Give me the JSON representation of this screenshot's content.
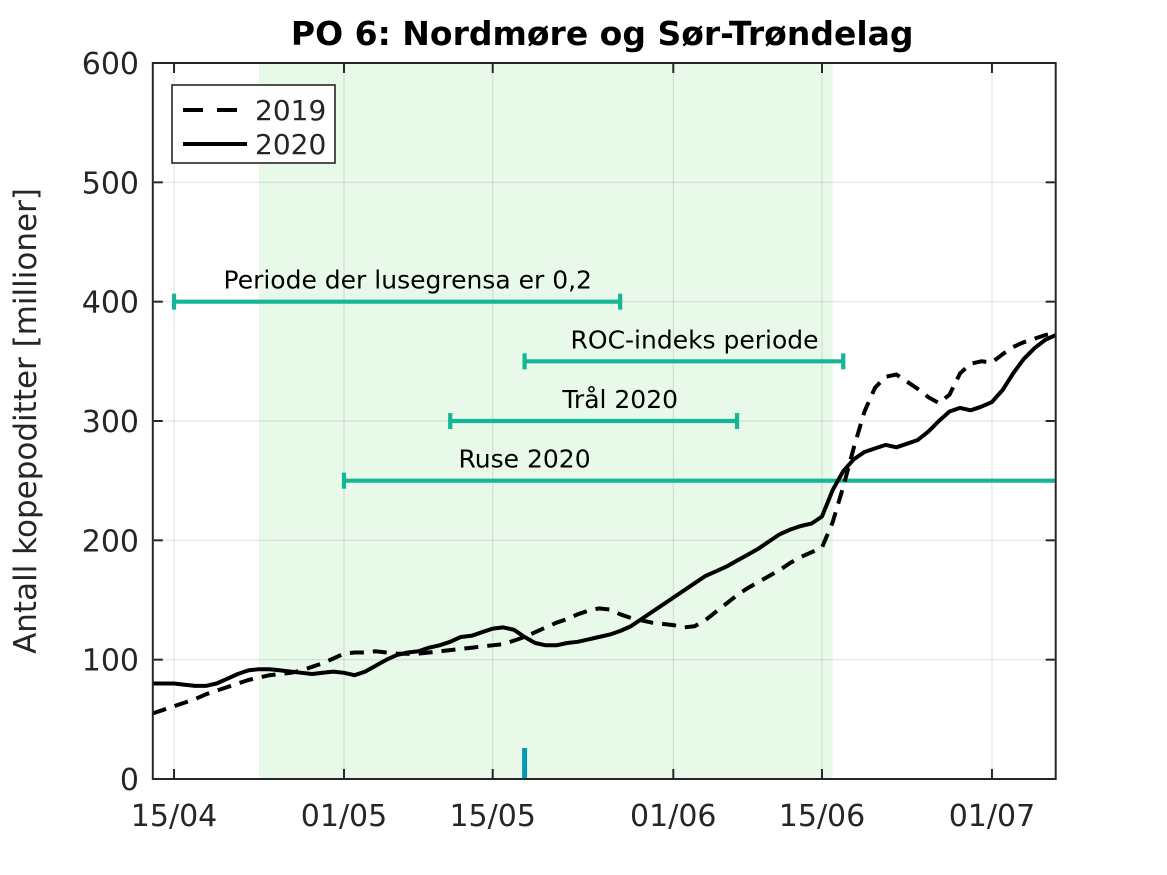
{
  "title": "PO 6: Nordmøre og Sør-Trøndelag",
  "colors": {
    "background": "#ffffff",
    "shaded_region": "#e8f9e9",
    "grid": "rgba(38,38,38,0.12)",
    "axis": "#262626",
    "tick_label": "#262626",
    "series_line": "#000000",
    "interval_bar": "#14b795",
    "event_tick": "#0998b4",
    "annotation_text": "#000000",
    "legend_border": "#262626",
    "legend_background": "#ffffff"
  },
  "chart_data": {
    "type": "line",
    "title": "PO 6: Nordmøre og Sør-Trøndelag",
    "xlabel": "",
    "ylabel": "Antall kopepoditter [millioner]",
    "ylim": [
      0,
      600
    ],
    "yticks": [
      0,
      100,
      200,
      300,
      400,
      500,
      600
    ],
    "xticks": [
      "15/04",
      "01/05",
      "15/05",
      "01/06",
      "15/06",
      "01/07"
    ],
    "grid": "on",
    "legend_position": "top-left",
    "legend": [
      {
        "label": "2019",
        "style": "dashed"
      },
      {
        "label": "2020",
        "style": "solid"
      }
    ],
    "dates": [
      "13/04",
      "14/04",
      "15/04",
      "16/04",
      "17/04",
      "18/04",
      "19/04",
      "20/04",
      "21/04",
      "22/04",
      "23/04",
      "24/04",
      "25/04",
      "26/04",
      "27/04",
      "28/04",
      "29/04",
      "30/04",
      "01/05",
      "02/05",
      "03/05",
      "04/05",
      "05/05",
      "06/05",
      "07/05",
      "08/05",
      "09/05",
      "10/05",
      "11/05",
      "12/05",
      "13/05",
      "14/05",
      "15/05",
      "16/05",
      "17/05",
      "18/05",
      "19/05",
      "20/05",
      "21/05",
      "22/05",
      "23/05",
      "24/05",
      "25/05",
      "26/05",
      "27/05",
      "28/05",
      "29/05",
      "30/05",
      "31/05",
      "01/06",
      "02/06",
      "03/06",
      "04/06",
      "05/06",
      "06/06",
      "07/06",
      "08/06",
      "09/06",
      "10/06",
      "11/06",
      "12/06",
      "13/06",
      "14/06",
      "15/06",
      "16/06",
      "17/06",
      "18/06",
      "19/06",
      "20/06",
      "21/06",
      "22/06",
      "23/06",
      "24/06",
      "25/06",
      "26/06",
      "27/06",
      "28/06",
      "29/06",
      "30/06",
      "01/07",
      "02/07",
      "03/07",
      "04/07",
      "05/07",
      "06/07",
      "07/07"
    ],
    "series": [
      {
        "name": "2019",
        "style": "dashed",
        "values": [
          55,
          58,
          61,
          64,
          67,
          71,
          74,
          77,
          80,
          83,
          85,
          87,
          88,
          89,
          91,
          94,
          97,
          101,
          105,
          106,
          106,
          107,
          106,
          105,
          105,
          105,
          106,
          107,
          108,
          109,
          110,
          111,
          112,
          113,
          116,
          119,
          123,
          127,
          131,
          134,
          138,
          141,
          143,
          142,
          138,
          135,
          133,
          131,
          130,
          129,
          127,
          128,
          133,
          140,
          147,
          154,
          160,
          165,
          170,
          175,
          181,
          186,
          190,
          194,
          215,
          245,
          278,
          308,
          328,
          337,
          339,
          333,
          327,
          320,
          315,
          322,
          340,
          348,
          350,
          349,
          356,
          362,
          366,
          369,
          372,
          374
        ]
      },
      {
        "name": "2020",
        "style": "solid",
        "values": [
          80,
          80,
          80,
          79,
          78,
          78,
          80,
          84,
          88,
          91,
          92,
          92,
          91,
          90,
          89,
          88,
          89,
          90,
          89,
          87,
          90,
          95,
          100,
          104,
          106,
          107,
          110,
          112,
          115,
          119,
          120,
          123,
          126,
          127,
          125,
          119,
          114,
          112,
          112,
          114,
          115,
          117,
          119,
          121,
          124,
          128,
          134,
          140,
          146,
          152,
          158,
          164,
          170,
          174,
          178,
          183,
          188,
          193,
          199,
          205,
          209,
          212,
          214,
          220,
          242,
          258,
          268,
          274,
          277,
          280,
          278,
          281,
          284,
          291,
          300,
          308,
          311,
          309,
          312,
          316,
          326,
          340,
          352,
          361,
          368,
          372
        ]
      }
    ],
    "shaded_region": {
      "from": "23/04",
      "to": "16/06",
      "color": "#e8f9e9"
    },
    "interval_bars": [
      {
        "label": "Periode der lusegrensa er 0,2",
        "y": 400,
        "from": "15/04",
        "to": "27/05",
        "label_date": "07/05",
        "caps": [
          "left",
          "right"
        ]
      },
      {
        "label": "ROC-indeks periode",
        "y": 350,
        "from": "18/05",
        "to": "17/06",
        "label_date": "03/06",
        "caps": [
          "left",
          "right"
        ]
      },
      {
        "label": "Trål 2020",
        "y": 300,
        "from": "11/05",
        "to": "07/06",
        "label_date": "27/05",
        "caps": [
          "left",
          "right"
        ]
      },
      {
        "label": "Ruse 2020",
        "y": 250,
        "from": "01/05",
        "to": "07/07",
        "label_date": "18/05",
        "caps": [
          "left"
        ]
      }
    ],
    "event_tick": {
      "date": "18/05",
      "height_value": 26,
      "color": "#0998b4"
    }
  }
}
